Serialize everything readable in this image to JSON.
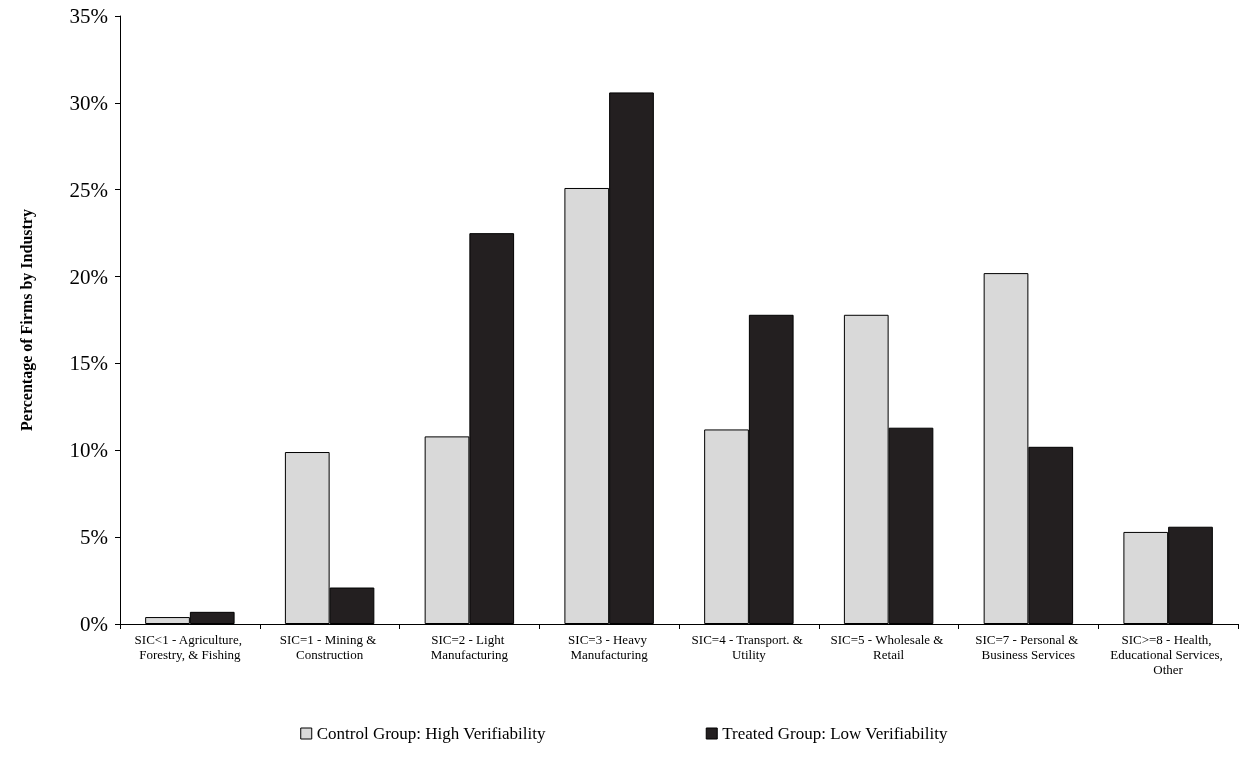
{
  "chart_data": {
    "type": "bar",
    "ylabel": "Percentage of Firms by Industry",
    "categories": [
      "SIC<1 - Agriculture, Forestry, & Fishing",
      "SIC=1 - Mining & Construction",
      "SIC=2 - Light Manufacturing",
      "SIC=3 - Heavy Manufacturing",
      "SIC=4 - Transport. & Utility",
      "SIC=5 - Wholesale & Retail",
      "SIC=7 - Personal & Business Services",
      "SIC>=8 - Health, Educational Services, Other"
    ],
    "series": [
      {
        "name": "Control Group: High Verifiability",
        "color": "#d9d9d9",
        "values": [
          0.4,
          9.9,
          10.8,
          25.1,
          11.2,
          17.8,
          20.2,
          5.3
        ]
      },
      {
        "name": "Treated Group: Low Verifiability",
        "color": "#231f20",
        "values": [
          0.7,
          2.1,
          22.5,
          30.6,
          17.8,
          11.3,
          10.2,
          5.6
        ]
      }
    ],
    "ylim": [
      0,
      35
    ],
    "yticks": [
      {
        "value": 0,
        "label": "0%"
      },
      {
        "value": 5,
        "label": "5%"
      },
      {
        "value": 10,
        "label": "10%"
      },
      {
        "value": 15,
        "label": "15%"
      },
      {
        "value": 20,
        "label": "20%"
      },
      {
        "value": 25,
        "label": "25%"
      },
      {
        "value": 30,
        "label": "30%"
      },
      {
        "value": 35,
        "label": "35%"
      }
    ],
    "grid": false,
    "legend": "bottom"
  }
}
